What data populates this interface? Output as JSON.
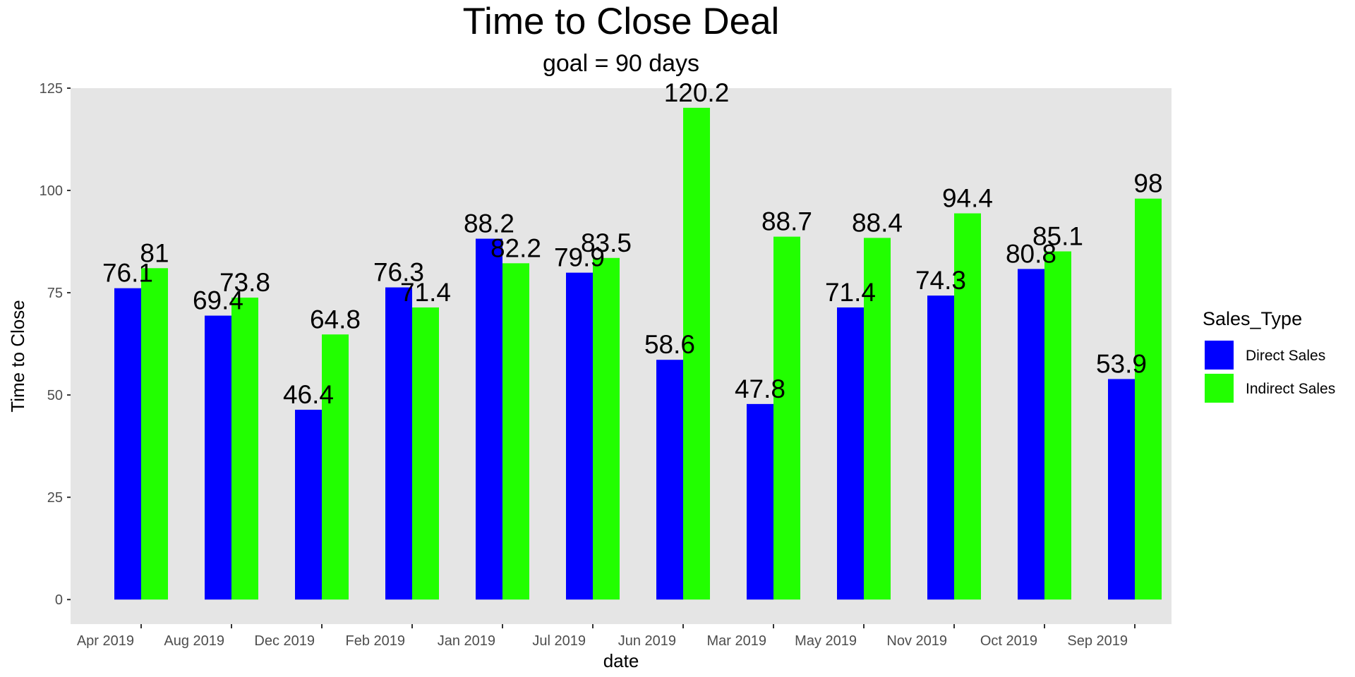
{
  "chart_data": {
    "type": "bar",
    "title": "Time to Close Deal",
    "subtitle": "goal = 90 days",
    "xlabel": "date",
    "ylabel": "Time to Close",
    "categories": [
      "Apr 2019",
      "Aug 2019",
      "Dec 2019",
      "Feb 2019",
      "Jan 2019",
      "Jul 2019",
      "Jun 2019",
      "Mar 2019",
      "May 2019",
      "Nov 2019",
      "Oct 2019",
      "Sep 2019"
    ],
    "series": [
      {
        "name": "Direct Sales",
        "color": "#0000ff",
        "values": [
          76.1,
          69.4,
          46.4,
          76.3,
          88.2,
          79.9,
          58.6,
          47.8,
          71.4,
          74.3,
          80.8,
          53.9
        ]
      },
      {
        "name": "Indirect Sales",
        "color": "#22ff00",
        "values": [
          81,
          73.8,
          64.8,
          71.4,
          82.2,
          83.5,
          120.2,
          88.7,
          88.4,
          94.4,
          85.1,
          98
        ]
      }
    ],
    "ylim": [
      -6,
      125
    ],
    "yticks": [
      0,
      25,
      50,
      75,
      100,
      125
    ],
    "grid": false,
    "panel_background": "#e5e5e5",
    "legend": {
      "title": "Sales_Type",
      "position": "right"
    }
  }
}
